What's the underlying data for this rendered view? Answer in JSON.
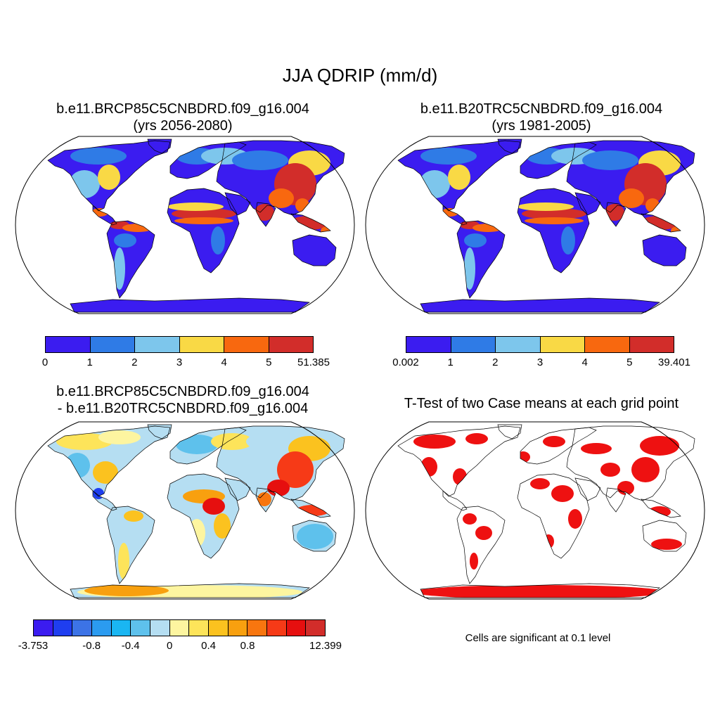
{
  "title": "JJA QDRIP (mm/d)",
  "panels": [
    {
      "title1": "b.e11.BRCP85C5CNBDRD.f09_g16.004",
      "title2": "(yrs 2056-2080)",
      "colorbar": {
        "colors": [
          "#3b1cf0",
          "#2f7be6",
          "#7dc6ec",
          "#f9d945",
          "#f8680f",
          "#d22d2a"
        ],
        "labels": [
          "0",
          "1",
          "2",
          "3",
          "4",
          "5",
          "51.385"
        ]
      }
    },
    {
      "title1": "b.e11.B20TRC5CNBDRD.f09_g16.004",
      "title2": "(yrs 1981-2005)",
      "colorbar": {
        "colors": [
          "#3b1cf0",
          "#2f7be6",
          "#7dc6ec",
          "#f9d945",
          "#f8680f",
          "#d22d2a"
        ],
        "labels": [
          "0.002",
          "1",
          "2",
          "3",
          "4",
          "5",
          "39.401"
        ]
      }
    },
    {
      "title1": "b.e11.BRCP85C5CNBDRD.f09_g16.004",
      "title2": "- b.e11.B20TRC5CNBDRD.f09_g16.004",
      "colorbar": {
        "colors": [
          "#3b1cf0",
          "#1f3ef0",
          "#3c73e6",
          "#2b9bf0",
          "#1ab6f2",
          "#5ec1ec",
          "#b5def2",
          "#fdf5a0",
          "#fde45a",
          "#fbc21f",
          "#f8a00f",
          "#f8760f",
          "#f63a17",
          "#e60f0f",
          "#d22d2a"
        ],
        "labels": [
          "-3.753",
          "",
          "",
          "-0.8",
          "",
          "-0.4",
          "",
          "0",
          "",
          "0.4",
          "",
          "0.8",
          "",
          "",
          "",
          "12.399"
        ]
      }
    },
    {
      "title1": "T-Test of two Case means at each grid point",
      "note": "Cells are significant at 0.1 level"
    }
  ],
  "map_colors": {
    "ocean": "#ffffff",
    "outline": "#000000",
    "significant": "#ee1111"
  }
}
